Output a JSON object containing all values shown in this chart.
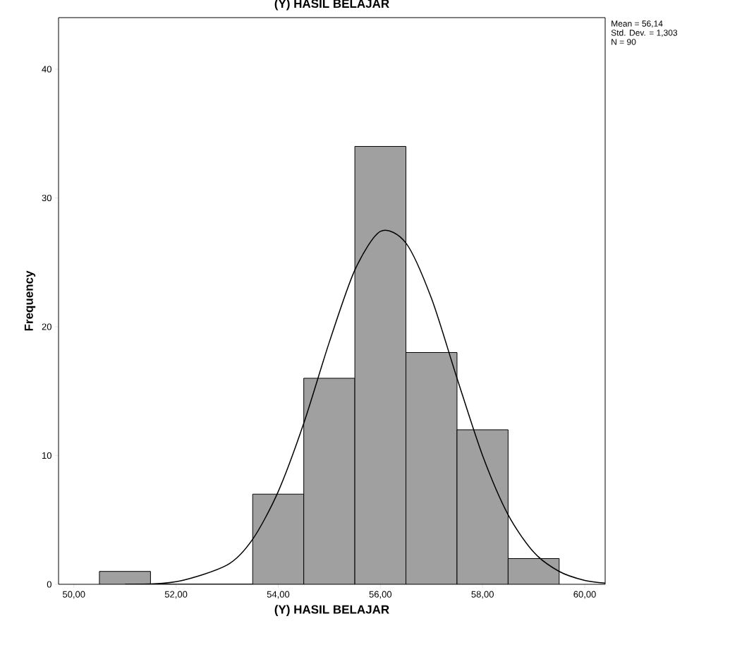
{
  "chart_data": {
    "type": "histogram",
    "title": "(Y) HASIL BELAJAR",
    "xlabel": "(Y) HASIL BELAJAR",
    "ylabel": "Frequency",
    "annotations": [
      "Mean = 56,14",
      "Std. Dev. = 1,303",
      "N = 90"
    ],
    "xlim": [
      49.7,
      60.4
    ],
    "ylim": [
      0,
      44
    ],
    "xticks": [
      {
        "value": 50,
        "label": "50,00"
      },
      {
        "value": 52,
        "label": "52,00"
      },
      {
        "value": 54,
        "label": "54,00"
      },
      {
        "value": 56,
        "label": "56,00"
      },
      {
        "value": 58,
        "label": "58,00"
      },
      {
        "value": 60,
        "label": "60,00"
      }
    ],
    "yticks": [
      0,
      10,
      20,
      30,
      40
    ],
    "series": [
      {
        "color": "#a0a0a0",
        "bins": [
          50.5,
          51.5,
          52.5,
          53.5,
          54.5,
          55.5,
          56.5,
          57.5,
          58.5,
          59.5
        ],
        "values": [
          1,
          0,
          0,
          7,
          16,
          34,
          18,
          12,
          2
        ]
      },
      {
        "type": "line",
        "color": "#000000",
        "x": [
          51,
          52,
          53,
          53.5,
          54,
          54.5,
          55,
          55.5,
          56,
          56.5,
          57,
          57.5,
          58,
          58.5,
          59,
          59.5,
          60,
          60.4
        ],
        "values": [
          0.0,
          0.2,
          1.5,
          3.5,
          7.2,
          12.5,
          18.8,
          24.4,
          27.4,
          26.5,
          22.2,
          16.0,
          10.0,
          5.4,
          2.5,
          1.0,
          0.3,
          0.1
        ]
      }
    ]
  }
}
